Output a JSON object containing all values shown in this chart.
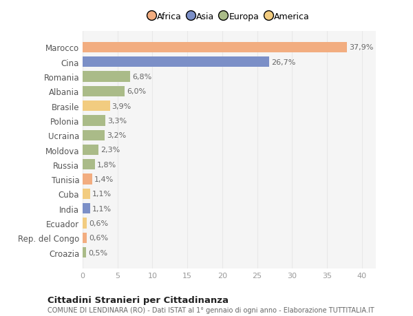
{
  "countries": [
    "Marocco",
    "Cina",
    "Romania",
    "Albania",
    "Brasile",
    "Polonia",
    "Ucraina",
    "Moldova",
    "Russia",
    "Tunisia",
    "Cuba",
    "India",
    "Ecuador",
    "Rep. del Congo",
    "Croazia"
  ],
  "values": [
    37.9,
    26.7,
    6.8,
    6.0,
    3.9,
    3.3,
    3.2,
    2.3,
    1.8,
    1.4,
    1.1,
    1.1,
    0.6,
    0.6,
    0.5
  ],
  "labels": [
    "37,9%",
    "26,7%",
    "6,8%",
    "6,0%",
    "3,9%",
    "3,3%",
    "3,2%",
    "2,3%",
    "1,8%",
    "1,4%",
    "1,1%",
    "1,1%",
    "0,6%",
    "0,6%",
    "0,5%"
  ],
  "continents": [
    "Africa",
    "Asia",
    "Europa",
    "Europa",
    "America",
    "Europa",
    "Europa",
    "Europa",
    "Europa",
    "Africa",
    "America",
    "Asia",
    "America",
    "Africa",
    "Europa"
  ],
  "colors": {
    "Africa": "#F2AD80",
    "Asia": "#7B8FC7",
    "Europa": "#AABB88",
    "America": "#F2CC80"
  },
  "legend_order": [
    "Africa",
    "Asia",
    "Europa",
    "America"
  ],
  "legend_colors": [
    "#F2AD80",
    "#7B8FC7",
    "#AABB88",
    "#F2CC80"
  ],
  "title": "Cittadini Stranieri per Cittadinanza",
  "subtitle": "COMUNE DI LENDINARA (RO) - Dati ISTAT al 1° gennaio di ogni anno - Elaborazione TUTTITALIA.IT",
  "xlim": [
    0,
    42
  ],
  "xticks": [
    0,
    5,
    10,
    15,
    20,
    25,
    30,
    35,
    40
  ],
  "background_color": "#ffffff",
  "plot_bg_color": "#f5f5f5",
  "grid_color": "#e8e8e8",
  "bar_height": 0.72,
  "label_fontsize": 8,
  "ytick_fontsize": 8.5,
  "xtick_fontsize": 8
}
